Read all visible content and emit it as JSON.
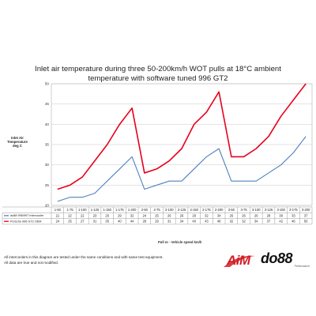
{
  "chart_data": {
    "type": "line",
    "title_line1": "Inlet air temperature during three 50-200km/h WOT pulls at 18°C ambient",
    "title_line2": "temperature with software tuned 996 GT2",
    "ylabel_lines": [
      "Inlet Air",
      "Temperature",
      "deg C"
    ],
    "xlabel": "Pull nr - Vehicle speed km/h",
    "ylim": [
      20,
      50
    ],
    "yticks": [
      20,
      25,
      30,
      35,
      40,
      45,
      50
    ],
    "grid": true,
    "categories": [
      "1-50",
      "1-75",
      "1-100",
      "1-125",
      "1-150",
      "1-175",
      "1-200",
      "2-50",
      "2-75",
      "2-100",
      "2-125",
      "2-150",
      "2-175",
      "2-200",
      "3-50",
      "3-75",
      "3-100",
      "3-125",
      "3-150",
      "3-175",
      "3-200"
    ],
    "series": [
      {
        "name": "do88 996/997 Intercooler",
        "color": "#4f81bd",
        "values": [
          21,
          22,
          22,
          23,
          26,
          29,
          32,
          24,
          25,
          26,
          26,
          29,
          32,
          34,
          26,
          26,
          26,
          28,
          30,
          33,
          37
        ]
      },
      {
        "name": "Porsche 996 GT2 OEM",
        "color": "#e8001c",
        "values": [
          24,
          25,
          27,
          31,
          35,
          40,
          44,
          28,
          29,
          31,
          34,
          40,
          43,
          48,
          32,
          32,
          34,
          37,
          42,
          46,
          50
        ]
      }
    ]
  },
  "footnotes": {
    "line1": "All intercoolers in this diagram are tested under the same conditions and with same test equipment.",
    "line2": "All data are true and not modified."
  },
  "logos": {
    "aim": "AiM",
    "do88": "do88",
    "do88_tagline": "Performance"
  }
}
